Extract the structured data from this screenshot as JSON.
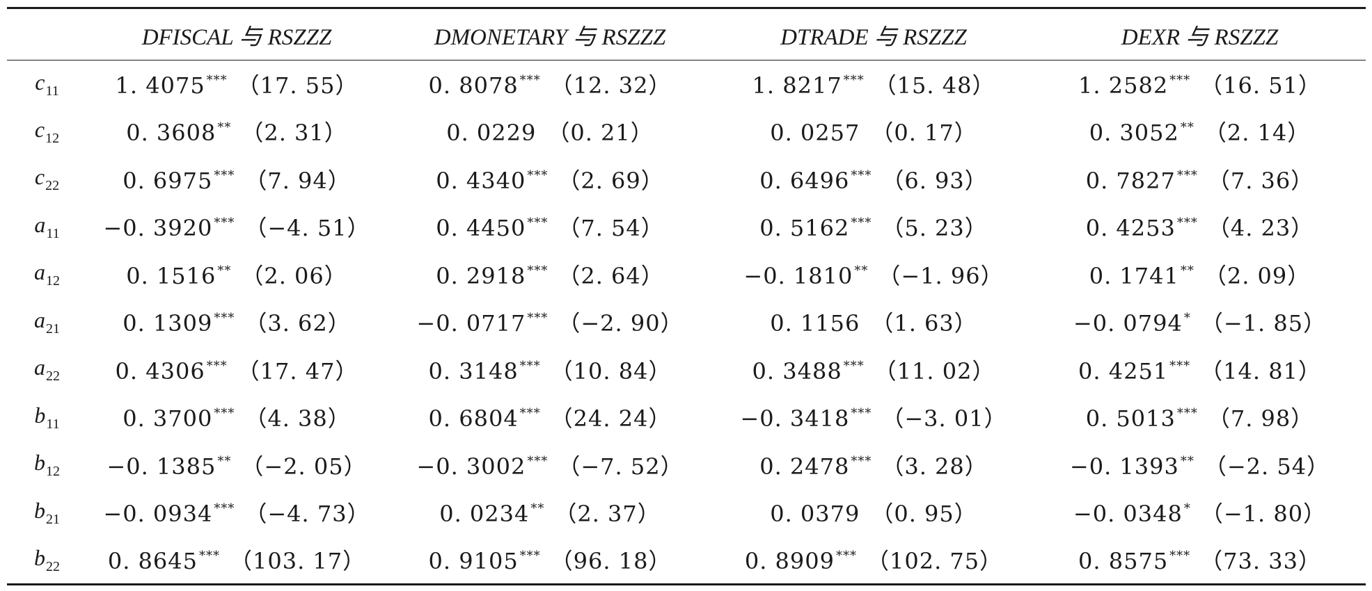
{
  "table": {
    "headers": [
      "",
      "DFISCAL 与 RSZZZ",
      "DMONETARY 与 RSZZZ",
      "DTRADE 与 RSZZZ",
      "DEXR 与 RSZZZ"
    ],
    "rows": [
      {
        "param": {
          "base": "c",
          "sub": "11"
        },
        "cells": [
          {
            "coef": "1. 4075",
            "stars": "***",
            "t": "（17. 55）"
          },
          {
            "coef": "0. 8078",
            "stars": "***",
            "t": "（12. 32）"
          },
          {
            "coef": "1. 8217",
            "stars": "***",
            "t": "（15. 48）"
          },
          {
            "coef": "1. 2582",
            "stars": "***",
            "t": "（16. 51）"
          }
        ]
      },
      {
        "param": {
          "base": "c",
          "sub": "12"
        },
        "cells": [
          {
            "coef": "0. 3608",
            "stars": "**",
            "t": "（2. 31）"
          },
          {
            "coef": "0. 0229",
            "stars": "",
            "t": "（0. 21）"
          },
          {
            "coef": "0. 0257",
            "stars": "",
            "t": "（0. 17）"
          },
          {
            "coef": "0. 3052",
            "stars": "**",
            "t": "（2. 14）"
          }
        ]
      },
      {
        "param": {
          "base": "c",
          "sub": "22"
        },
        "cells": [
          {
            "coef": "0. 6975",
            "stars": "***",
            "t": "（7. 94）"
          },
          {
            "coef": "0. 4340",
            "stars": "***",
            "t": "（2. 69）"
          },
          {
            "coef": "0. 6496",
            "stars": "***",
            "t": "（6. 93）"
          },
          {
            "coef": "0. 7827",
            "stars": "***",
            "t": "（7. 36）"
          }
        ]
      },
      {
        "param": {
          "base": "a",
          "sub": "11"
        },
        "cells": [
          {
            "coef": "−0. 3920",
            "stars": "***",
            "t": "（−4. 51）"
          },
          {
            "coef": "0. 4450",
            "stars": "***",
            "t": "（7. 54）"
          },
          {
            "coef": "0. 5162",
            "stars": "***",
            "t": "（5. 23）"
          },
          {
            "coef": "0. 4253",
            "stars": "***",
            "t": "（4. 23）"
          }
        ]
      },
      {
        "param": {
          "base": "a",
          "sub": "12"
        },
        "cells": [
          {
            "coef": "0. 1516",
            "stars": "**",
            "t": "（2. 06）"
          },
          {
            "coef": "0. 2918",
            "stars": "***",
            "t": "（2. 64）"
          },
          {
            "coef": "−0. 1810",
            "stars": "**",
            "t": "（−1. 96）"
          },
          {
            "coef": "0. 1741",
            "stars": "**",
            "t": "（2. 09）"
          }
        ]
      },
      {
        "param": {
          "base": "a",
          "sub": "21"
        },
        "cells": [
          {
            "coef": "0. 1309",
            "stars": "***",
            "t": "（3. 62）"
          },
          {
            "coef": "−0. 0717",
            "stars": "***",
            "t": "（−2. 90）"
          },
          {
            "coef": "0. 1156",
            "stars": "",
            "t": "（1. 63）"
          },
          {
            "coef": "−0. 0794",
            "stars": "*",
            "t": "（−1. 85）"
          }
        ]
      },
      {
        "param": {
          "base": "a",
          "sub": "22"
        },
        "cells": [
          {
            "coef": "0. 4306",
            "stars": "***",
            "t": "（17. 47）"
          },
          {
            "coef": "0. 3148",
            "stars": "***",
            "t": "（10. 84）"
          },
          {
            "coef": "0. 3488",
            "stars": "***",
            "t": "（11. 02）"
          },
          {
            "coef": "0. 4251",
            "stars": "***",
            "t": "（14. 81）"
          }
        ]
      },
      {
        "param": {
          "base": "b",
          "sub": "11"
        },
        "cells": [
          {
            "coef": "0. 3700",
            "stars": "***",
            "t": "（4. 38）"
          },
          {
            "coef": "0. 6804",
            "stars": "***",
            "t": "（24. 24）"
          },
          {
            "coef": "−0. 3418",
            "stars": "***",
            "t": "（−3. 01）"
          },
          {
            "coef": "0. 5013",
            "stars": "***",
            "t": "（7. 98）"
          }
        ]
      },
      {
        "param": {
          "base": "b",
          "sub": "12"
        },
        "cells": [
          {
            "coef": "−0. 1385",
            "stars": "**",
            "t": "（−2. 05）"
          },
          {
            "coef": "−0. 3002",
            "stars": "***",
            "t": "（−7. 52）"
          },
          {
            "coef": "0. 2478",
            "stars": "***",
            "t": "（3. 28）"
          },
          {
            "coef": "−0. 1393",
            "stars": "**",
            "t": "（−2. 54）"
          }
        ]
      },
      {
        "param": {
          "base": "b",
          "sub": "21"
        },
        "cells": [
          {
            "coef": "−0. 0934",
            "stars": "***",
            "t": "（−4. 73）"
          },
          {
            "coef": "0. 0234",
            "stars": "**",
            "t": "（2. 37）"
          },
          {
            "coef": "0. 0379",
            "stars": "",
            "t": "（0. 95）"
          },
          {
            "coef": "−0. 0348",
            "stars": "*",
            "t": "（−1. 80）"
          }
        ]
      },
      {
        "param": {
          "base": "b",
          "sub": "22"
        },
        "cells": [
          {
            "coef": "0. 8645",
            "stars": "***",
            "t": "（103. 17）"
          },
          {
            "coef": "0. 9105",
            "stars": "***",
            "t": "（96. 18）"
          },
          {
            "coef": "0. 8909",
            "stars": "***",
            "t": "（102. 75）"
          },
          {
            "coef": "0. 8575",
            "stars": "***",
            "t": "（73. 33）"
          }
        ]
      }
    ]
  }
}
